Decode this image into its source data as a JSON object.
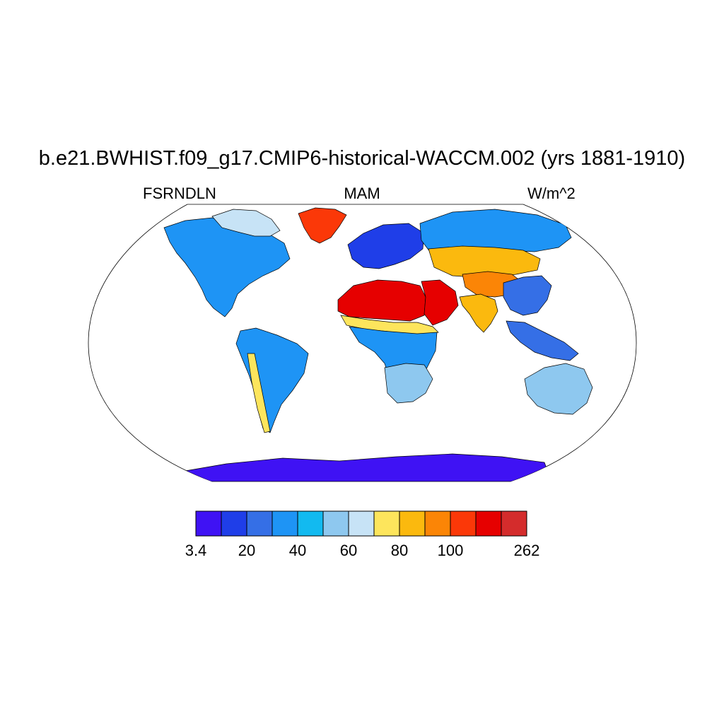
{
  "header": {
    "title": "b.e21.BWHIST.f09_g17.CMIP6-historical-WACCM.002 (yrs 1881-1910)",
    "left_label": "FSRNDLN",
    "center_label": "MAM",
    "right_label": "W/m^2"
  },
  "map": {
    "projection": "Robinson",
    "field": "FSRNDLN",
    "regions": [
      {
        "name": "north-america",
        "category": 4
      },
      {
        "name": "canadian-arctic",
        "category": 7
      },
      {
        "name": "greenland",
        "category": 11
      },
      {
        "name": "south-america",
        "category": 4
      },
      {
        "name": "andes",
        "category": 8
      },
      {
        "name": "europe",
        "category": 2
      },
      {
        "name": "sahara",
        "category": 12
      },
      {
        "name": "arabia",
        "category": 12
      },
      {
        "name": "sahel",
        "category": 8
      },
      {
        "name": "central-africa",
        "category": 4
      },
      {
        "name": "southern-africa",
        "category": 6
      },
      {
        "name": "siberia",
        "category": 4
      },
      {
        "name": "central-asia",
        "category": 9
      },
      {
        "name": "tibet",
        "category": 10
      },
      {
        "name": "india",
        "category": 9
      },
      {
        "name": "east-asia",
        "category": 3
      },
      {
        "name": "southeast-asia",
        "category": 3
      },
      {
        "name": "australia",
        "category": 6
      },
      {
        "name": "antarctica",
        "category": 1
      }
    ]
  },
  "colorbar": {
    "colors": [
      "#3f12f4",
      "#1f3ee8",
      "#356fe6",
      "#1e94f5",
      "#12baf0",
      "#8ec8ef",
      "#c7e3f6",
      "#fde55c",
      "#fbb90e",
      "#fb8506",
      "#fb3808",
      "#e60000",
      "#d42c2c"
    ],
    "tick_labels": [
      {
        "index": 0,
        "label": "3.4"
      },
      {
        "index": 2,
        "label": "20"
      },
      {
        "index": 4,
        "label": "40"
      },
      {
        "index": 6,
        "label": "60"
      },
      {
        "index": 8,
        "label": "80"
      },
      {
        "index": 10,
        "label": "100"
      },
      {
        "index": 13,
        "label": "262"
      }
    ]
  }
}
